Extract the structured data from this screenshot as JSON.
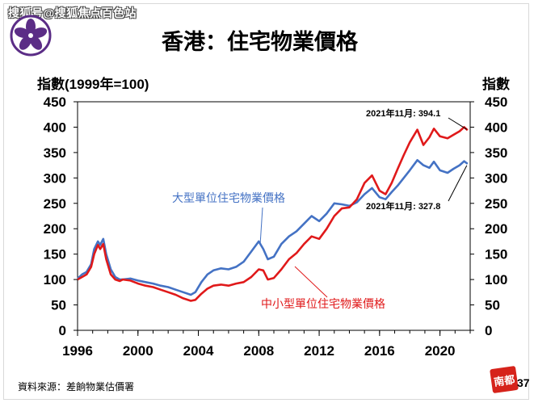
{
  "watermark": "搜狐号@搜狐焦点百色站",
  "title": "香港：住宅物業價格",
  "y_unit_left": "指數(1999年=100)",
  "y_unit_right": "指數",
  "source": "資料來源：差餉物業估價署",
  "badge": "南都",
  "page_number": "37",
  "emblem": "bauhinia-emblem-icon",
  "colors": {
    "large": "#4472c4",
    "small": "#e0191a",
    "emblem": "#5b2d86"
  },
  "chart_data": {
    "type": "line",
    "title": "香港：住宅物業價格",
    "ylabel": "指數(1999年=100)",
    "ylim": [
      0,
      450
    ],
    "yticks": [
      0,
      50,
      100,
      150,
      200,
      250,
      300,
      350,
      400,
      450
    ],
    "xlim": [
      1996,
      2022
    ],
    "xticks": [
      1996,
      2000,
      2004,
      2008,
      2012,
      2016,
      2020
    ],
    "grid": false,
    "series": [
      {
        "name": "大型單位住宅物業價格",
        "color": "#4472c4",
        "points": [
          [
            1996.0,
            102
          ],
          [
            1996.3,
            110
          ],
          [
            1996.6,
            115
          ],
          [
            1996.9,
            130
          ],
          [
            1997.1,
            160
          ],
          [
            1997.35,
            175
          ],
          [
            1997.5,
            168
          ],
          [
            1997.7,
            180
          ],
          [
            1997.9,
            150
          ],
          [
            1998.2,
            120
          ],
          [
            1998.5,
            105
          ],
          [
            1998.8,
            100
          ],
          [
            1999.0,
            100
          ],
          [
            1999.5,
            102
          ],
          [
            2000.0,
            98
          ],
          [
            2000.5,
            95
          ],
          [
            2001.0,
            92
          ],
          [
            2001.5,
            88
          ],
          [
            2002.0,
            85
          ],
          [
            2002.5,
            80
          ],
          [
            2003.0,
            75
          ],
          [
            2003.5,
            70
          ],
          [
            2003.8,
            75
          ],
          [
            2004.2,
            95
          ],
          [
            2004.6,
            110
          ],
          [
            2005.0,
            118
          ],
          [
            2005.5,
            122
          ],
          [
            2006.0,
            120
          ],
          [
            2006.5,
            125
          ],
          [
            2007.0,
            135
          ],
          [
            2007.5,
            155
          ],
          [
            2008.0,
            175
          ],
          [
            2008.3,
            160
          ],
          [
            2008.6,
            140
          ],
          [
            2009.0,
            145
          ],
          [
            2009.5,
            170
          ],
          [
            2010.0,
            185
          ],
          [
            2010.5,
            195
          ],
          [
            2011.0,
            210
          ],
          [
            2011.5,
            225
          ],
          [
            2012.0,
            215
          ],
          [
            2012.5,
            230
          ],
          [
            2013.0,
            250
          ],
          [
            2013.5,
            248
          ],
          [
            2014.0,
            245
          ],
          [
            2014.5,
            252
          ],
          [
            2015.0,
            268
          ],
          [
            2015.5,
            280
          ],
          [
            2016.0,
            262
          ],
          [
            2016.4,
            258
          ],
          [
            2016.8,
            272
          ],
          [
            2017.2,
            285
          ],
          [
            2017.6,
            300
          ],
          [
            2018.0,
            315
          ],
          [
            2018.5,
            335
          ],
          [
            2018.9,
            325
          ],
          [
            2019.3,
            320
          ],
          [
            2019.6,
            332
          ],
          [
            2020.0,
            315
          ],
          [
            2020.5,
            310
          ],
          [
            2020.9,
            318
          ],
          [
            2021.3,
            325
          ],
          [
            2021.6,
            333
          ],
          [
            2021.83,
            327.8
          ]
        ]
      },
      {
        "name": "中小型單位住宅物業價格",
        "color": "#e0191a",
        "points": [
          [
            1996.0,
            100
          ],
          [
            1996.3,
            105
          ],
          [
            1996.6,
            110
          ],
          [
            1996.9,
            125
          ],
          [
            1997.1,
            150
          ],
          [
            1997.35,
            168
          ],
          [
            1997.5,
            160
          ],
          [
            1997.7,
            170
          ],
          [
            1997.9,
            140
          ],
          [
            1998.2,
            110
          ],
          [
            1998.5,
            100
          ],
          [
            1998.8,
            97
          ],
          [
            1999.0,
            100
          ],
          [
            1999.5,
            98
          ],
          [
            2000.0,
            92
          ],
          [
            2000.5,
            88
          ],
          [
            2001.0,
            85
          ],
          [
            2001.5,
            80
          ],
          [
            2002.0,
            75
          ],
          [
            2002.5,
            70
          ],
          [
            2003.0,
            63
          ],
          [
            2003.5,
            58
          ],
          [
            2003.8,
            60
          ],
          [
            2004.2,
            72
          ],
          [
            2004.6,
            82
          ],
          [
            2005.0,
            88
          ],
          [
            2005.5,
            90
          ],
          [
            2006.0,
            88
          ],
          [
            2006.5,
            92
          ],
          [
            2007.0,
            95
          ],
          [
            2007.5,
            105
          ],
          [
            2008.0,
            120
          ],
          [
            2008.3,
            118
          ],
          [
            2008.6,
            100
          ],
          [
            2009.0,
            103
          ],
          [
            2009.5,
            120
          ],
          [
            2010.0,
            140
          ],
          [
            2010.5,
            152
          ],
          [
            2011.0,
            170
          ],
          [
            2011.5,
            185
          ],
          [
            2012.0,
            180
          ],
          [
            2012.5,
            200
          ],
          [
            2013.0,
            225
          ],
          [
            2013.5,
            240
          ],
          [
            2014.0,
            242
          ],
          [
            2014.5,
            258
          ],
          [
            2015.0,
            290
          ],
          [
            2015.5,
            305
          ],
          [
            2016.0,
            275
          ],
          [
            2016.4,
            268
          ],
          [
            2016.8,
            290
          ],
          [
            2017.2,
            318
          ],
          [
            2017.6,
            345
          ],
          [
            2018.0,
            370
          ],
          [
            2018.5,
            395
          ],
          [
            2018.9,
            365
          ],
          [
            2019.3,
            380
          ],
          [
            2019.6,
            397
          ],
          [
            2020.0,
            382
          ],
          [
            2020.5,
            378
          ],
          [
            2020.9,
            385
          ],
          [
            2021.3,
            392
          ],
          [
            2021.6,
            400
          ],
          [
            2021.83,
            394.1
          ]
        ]
      }
    ],
    "annotations": [
      {
        "text": "2021年11月: 394.1",
        "anchor": [
          2021.83,
          394.1
        ]
      },
      {
        "text": "2021年11月: 327.8",
        "anchor": [
          2021.83,
          327.8
        ]
      }
    ]
  }
}
